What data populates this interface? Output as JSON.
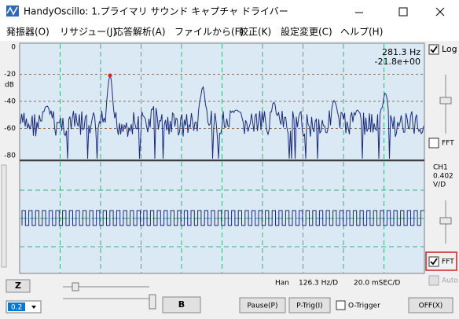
{
  "title_bar": {
    "title": "HandyOscillo:  1.プライマリ サウンド キャプチャ ドライバー"
  },
  "menu": {
    "items": [
      "発振器(O)",
      "リサジュー(J)",
      "応答解析(A)",
      "ファイルから(F)",
      "較正(K)",
      "設定変更(C)",
      "ヘルプ(H)"
    ]
  },
  "fft_plot": {
    "yticks": [
      0,
      -20,
      -40,
      -60,
      -80
    ],
    "y_unit": "dB",
    "readout": [
      "281.3  Hz",
      "-21.8e+00"
    ]
  },
  "right_panel": {
    "log_checkbox": "Log",
    "fft_checkbox_top": "FFT",
    "channel": [
      "CH1",
      "0.402",
      "V/D"
    ],
    "fft_checkbox_bottom": "FFT",
    "auto_checkbox": "Auto"
  },
  "status": {
    "window": "Han",
    "freq_div": "126.3 Hz/D",
    "time_div": "20.0  mSEC/D"
  },
  "controls": {
    "z_button": "Z",
    "dropdown": "0.2",
    "b_button": "B",
    "pause_button": "Pause(P)",
    "ptrig_button": "P-Trig(I)",
    "otrigger_checkbox": "O-Trigger",
    "off_button": "OFF(X)"
  }
}
